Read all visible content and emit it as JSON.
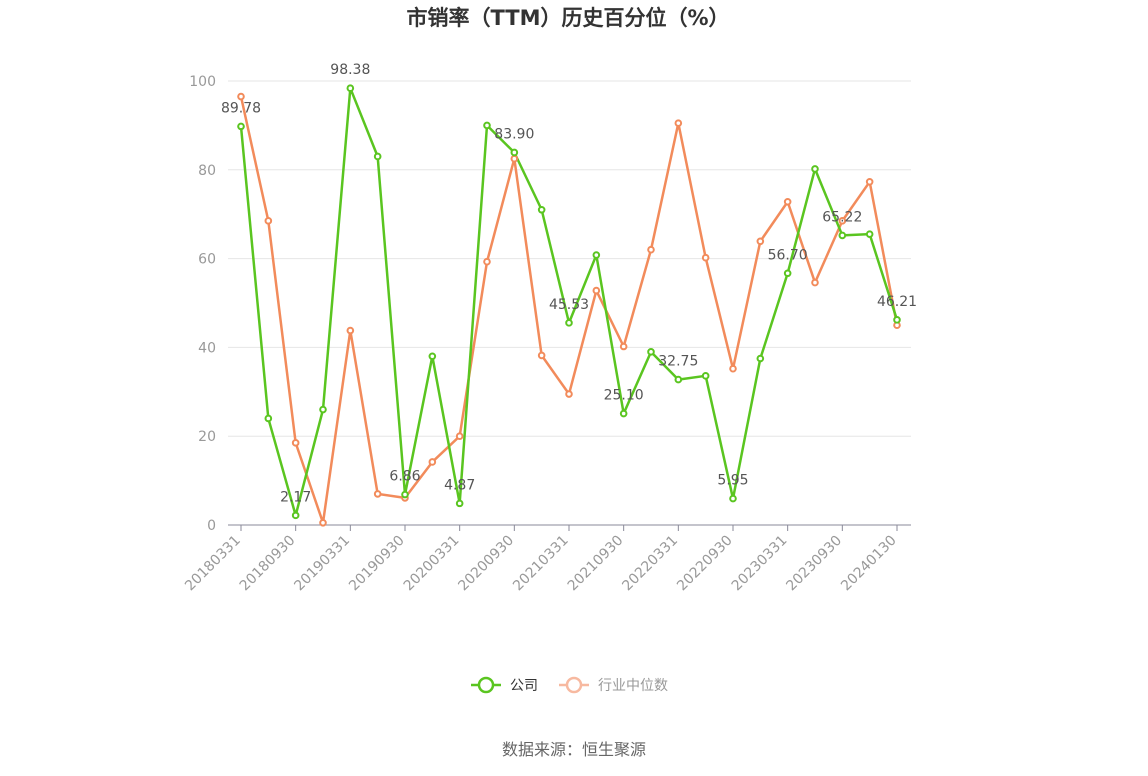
{
  "chart_data": {
    "type": "line",
    "title": "市销率（TTM）历史百分位（%）",
    "xlabel": "",
    "ylabel": "",
    "ylim": [
      0,
      100
    ],
    "yticks": [
      0,
      20,
      40,
      60,
      80,
      100
    ],
    "grid": true,
    "legend_position": "bottom",
    "x": [
      "20180331",
      "20180630",
      "20180930",
      "20181231",
      "20190331",
      "20190630",
      "20190930",
      "20191231",
      "20200331",
      "20200630",
      "20200930",
      "20201231",
      "20210331",
      "20210630",
      "20210930",
      "20211231",
      "20220331",
      "20220630",
      "20220930",
      "20221231",
      "20230331",
      "20230630",
      "20230930",
      "20231231",
      "20240130"
    ],
    "xtick_labels": [
      "20180331",
      "20180930",
      "20190331",
      "20190930",
      "20200331",
      "20200930",
      "20210331",
      "20210930",
      "20220331",
      "20220930",
      "20230331",
      "20230930",
      "20240130"
    ],
    "series": [
      {
        "name": "公司",
        "color": "#5ac520",
        "values": [
          89.78,
          24.0,
          2.17,
          26.0,
          98.38,
          83.0,
          6.86,
          38.0,
          4.87,
          90.0,
          83.9,
          71.0,
          45.53,
          60.8,
          25.1,
          39.0,
          32.75,
          33.6,
          5.95,
          37.5,
          56.7,
          80.2,
          65.22,
          65.5,
          46.21
        ],
        "data_labels": [
          {
            "index": 0,
            "text": "89.78"
          },
          {
            "index": 2,
            "text": "2.17"
          },
          {
            "index": 4,
            "text": "98.38"
          },
          {
            "index": 6,
            "text": "6.86"
          },
          {
            "index": 8,
            "text": "4.87"
          },
          {
            "index": 10,
            "text": "83.90"
          },
          {
            "index": 12,
            "text": "45.53"
          },
          {
            "index": 14,
            "text": "25.10"
          },
          {
            "index": 16,
            "text": "32.75"
          },
          {
            "index": 18,
            "text": "5.95"
          },
          {
            "index": 20,
            "text": "56.70"
          },
          {
            "index": 22,
            "text": "65.22"
          },
          {
            "index": 24,
            "text": "46.21"
          }
        ]
      },
      {
        "name": "行业中位数",
        "color": "#f28b5b",
        "values": [
          96.5,
          68.5,
          18.5,
          0.5,
          43.8,
          7.0,
          6.1,
          14.2,
          20.0,
          59.3,
          82.5,
          38.2,
          29.5,
          52.8,
          40.2,
          62.0,
          90.5,
          60.2,
          35.2,
          63.9,
          72.8,
          54.6,
          68.5,
          77.3,
          45.0
        ]
      }
    ]
  },
  "legend": {
    "company_label": "公司",
    "industry_label": "行业中位数",
    "company_color": "#5ac520",
    "industry_color": "#f28b5b",
    "industry_legend_color": "#f7b9a0"
  },
  "source": "数据来源：恒生聚源"
}
